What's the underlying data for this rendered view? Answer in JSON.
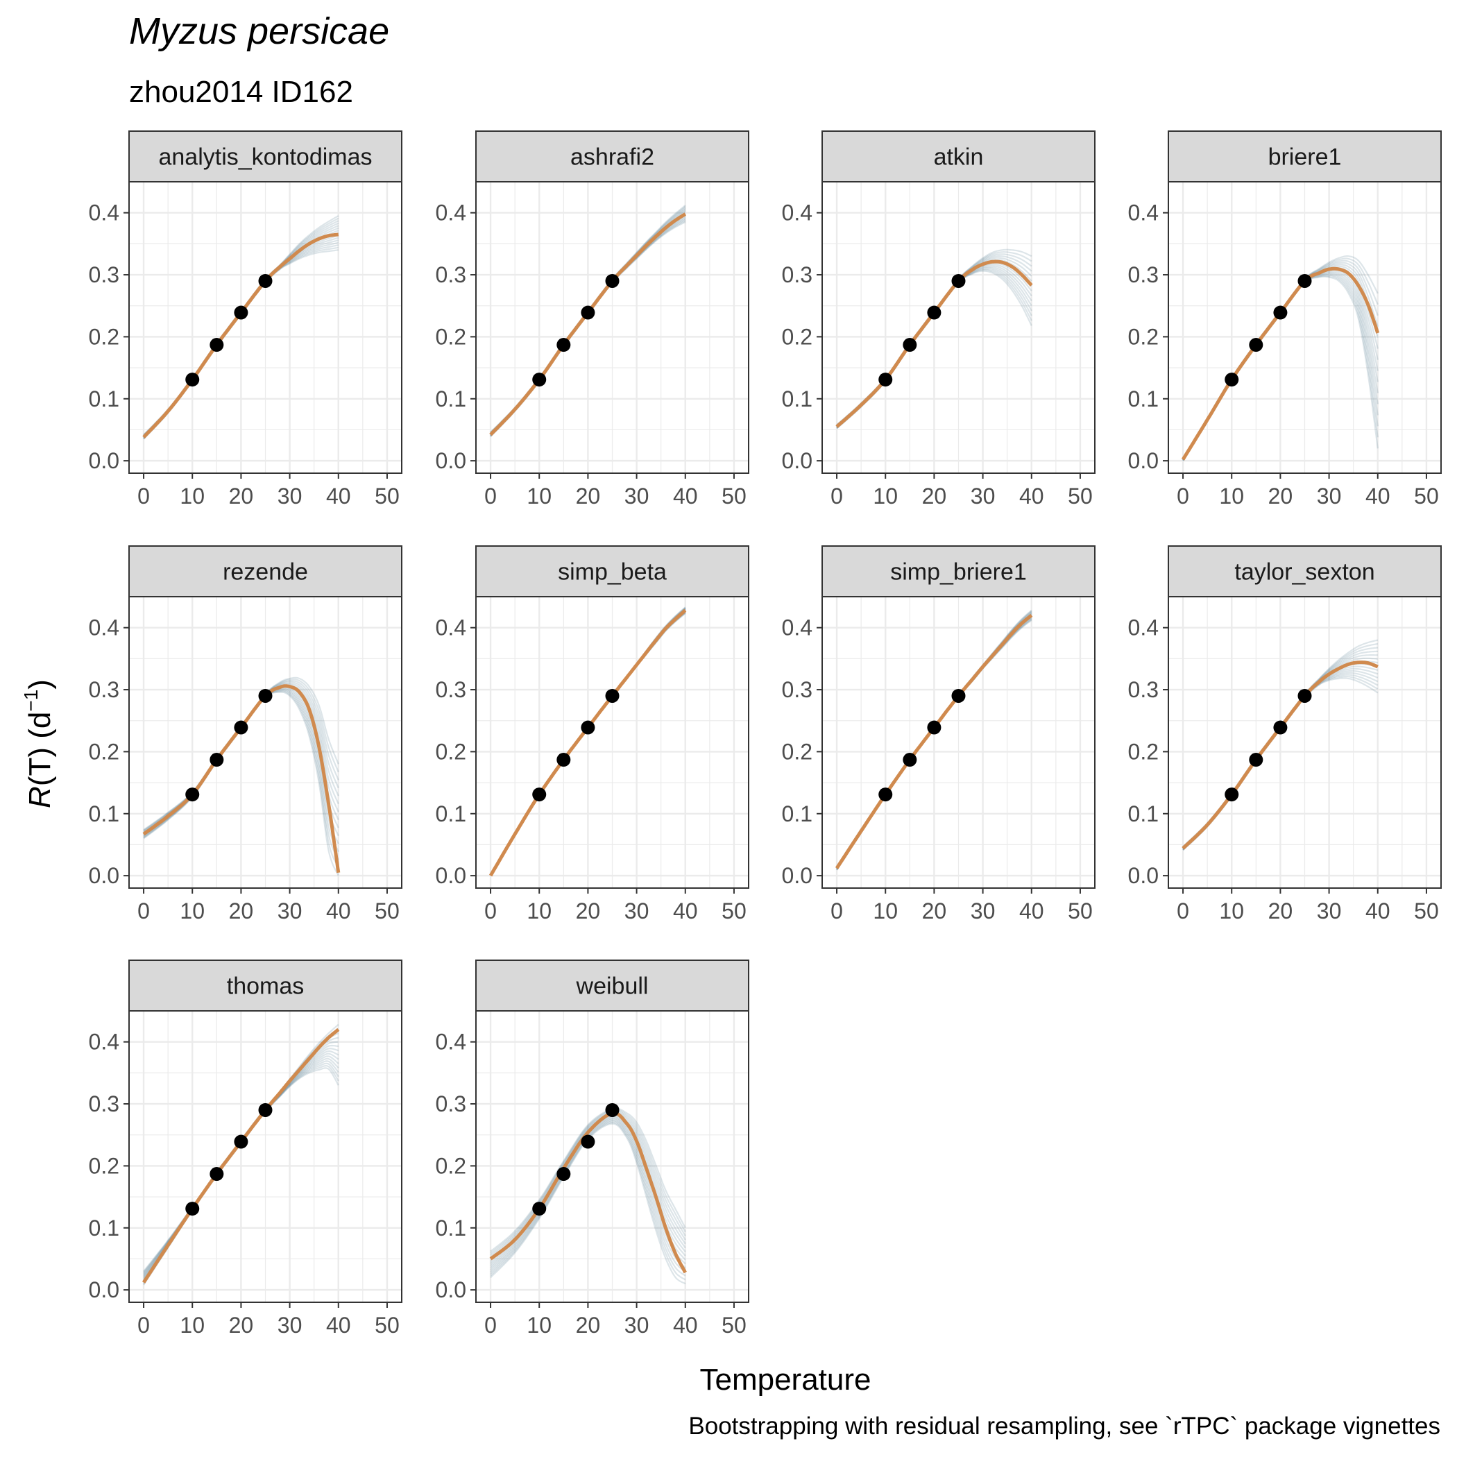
{
  "title": "Myzus persicae",
  "subtitle": "zhou2014 ID162",
  "caption": "Bootstrapping with residual resampling, see `rTPC` package vignettes",
  "colors": {
    "fit": "#d08a4e",
    "boot": "#2e5f78",
    "point": "#000000",
    "strip_bg": "#d9d9d9",
    "grid": "#ebebeb",
    "panel_border": "#333333"
  },
  "chart_data": {
    "type": "line",
    "layout": "facet grid, 4 columns",
    "xlabel": "Temperature",
    "ylabel": {
      "italic": "R",
      "rest": "(T) (d",
      "sup": "−1",
      "close": ")"
    },
    "xlim": [
      -3,
      53
    ],
    "ylim": [
      -0.02,
      0.45
    ],
    "xticks": [
      0,
      10,
      20,
      30,
      40,
      50
    ],
    "yticks": [
      0.0,
      0.1,
      0.2,
      0.3,
      0.4
    ],
    "ytick_labels": [
      "0.0",
      "0.1",
      "0.2",
      "0.3",
      "0.4"
    ],
    "grid": true,
    "observed": {
      "x": [
        10,
        15,
        20,
        25
      ],
      "y": [
        0.131,
        0.187,
        0.239,
        0.29
      ]
    },
    "fit_x": [
      0,
      5,
      10,
      15,
      20,
      25,
      28,
      30,
      32,
      34,
      36,
      38,
      40
    ],
    "panels": [
      {
        "name": "analytis_kontodimas",
        "fit_y": [
          0.038,
          0.08,
          0.131,
          0.187,
          0.239,
          0.29,
          0.313,
          0.326,
          0.339,
          0.35,
          0.358,
          0.363,
          0.365
        ],
        "band_lo": [
          0.035,
          0.077,
          0.128,
          0.184,
          0.236,
          0.287,
          0.309,
          0.318,
          0.326,
          0.332,
          0.336,
          0.338,
          0.34
        ],
        "band_hi": [
          0.042,
          0.083,
          0.134,
          0.19,
          0.242,
          0.293,
          0.316,
          0.333,
          0.35,
          0.364,
          0.376,
          0.386,
          0.395
        ]
      },
      {
        "name": "ashrafi2",
        "fit_y": [
          0.042,
          0.083,
          0.131,
          0.187,
          0.239,
          0.29,
          0.315,
          0.331,
          0.347,
          0.362,
          0.376,
          0.388,
          0.398
        ],
        "band_lo": [
          0.039,
          0.08,
          0.128,
          0.184,
          0.236,
          0.287,
          0.311,
          0.326,
          0.341,
          0.355,
          0.367,
          0.377,
          0.385
        ],
        "band_hi": [
          0.046,
          0.086,
          0.134,
          0.19,
          0.242,
          0.293,
          0.319,
          0.336,
          0.353,
          0.369,
          0.385,
          0.399,
          0.412
        ]
      },
      {
        "name": "atkin",
        "fit_y": [
          0.055,
          0.09,
          0.131,
          0.187,
          0.239,
          0.29,
          0.309,
          0.317,
          0.321,
          0.32,
          0.313,
          0.3,
          0.283
        ],
        "band_lo": [
          0.052,
          0.087,
          0.128,
          0.184,
          0.236,
          0.287,
          0.302,
          0.306,
          0.303,
          0.293,
          0.275,
          0.25,
          0.218
        ],
        "band_hi": [
          0.058,
          0.093,
          0.134,
          0.19,
          0.242,
          0.293,
          0.315,
          0.327,
          0.336,
          0.34,
          0.34,
          0.337,
          0.33
        ]
      },
      {
        "name": "briere1",
        "fit_y": [
          0.002,
          0.066,
          0.131,
          0.187,
          0.239,
          0.29,
          0.303,
          0.309,
          0.309,
          0.302,
          0.283,
          0.252,
          0.206
        ],
        "band_lo": [
          0.0,
          0.063,
          0.128,
          0.184,
          0.236,
          0.287,
          0.296,
          0.296,
          0.29,
          0.27,
          0.23,
          0.14,
          0.02
        ],
        "band_hi": [
          0.004,
          0.069,
          0.134,
          0.19,
          0.242,
          0.293,
          0.31,
          0.32,
          0.327,
          0.33,
          0.323,
          0.3,
          0.27
        ]
      },
      {
        "name": "rezende",
        "fit_y": [
          0.067,
          0.096,
          0.131,
          0.187,
          0.239,
          0.29,
          0.304,
          0.305,
          0.296,
          0.268,
          0.208,
          0.115,
          0.005
        ],
        "band_lo": [
          0.06,
          0.09,
          0.127,
          0.184,
          0.236,
          0.287,
          0.296,
          0.29,
          0.268,
          0.225,
          0.15,
          0.04,
          0.0
        ],
        "band_hi": [
          0.074,
          0.102,
          0.135,
          0.19,
          0.242,
          0.293,
          0.312,
          0.318,
          0.318,
          0.305,
          0.275,
          0.22,
          0.18
        ]
      },
      {
        "name": "simp_beta",
        "fit_y": [
          0.0,
          0.067,
          0.131,
          0.187,
          0.239,
          0.29,
          0.32,
          0.34,
          0.36,
          0.38,
          0.399,
          0.414,
          0.428
        ],
        "band_lo": [
          0.0,
          0.065,
          0.129,
          0.185,
          0.237,
          0.288,
          0.318,
          0.338,
          0.357,
          0.376,
          0.395,
          0.41,
          0.423
        ],
        "band_hi": [
          0.002,
          0.069,
          0.133,
          0.189,
          0.241,
          0.292,
          0.322,
          0.342,
          0.363,
          0.384,
          0.403,
          0.419,
          0.433
        ]
      },
      {
        "name": "simp_briere1",
        "fit_y": [
          0.012,
          0.072,
          0.131,
          0.187,
          0.239,
          0.29,
          0.318,
          0.337,
          0.355,
          0.373,
          0.391,
          0.407,
          0.42
        ],
        "band_lo": [
          0.009,
          0.069,
          0.129,
          0.185,
          0.237,
          0.288,
          0.315,
          0.334,
          0.351,
          0.368,
          0.385,
          0.4,
          0.412
        ],
        "band_hi": [
          0.015,
          0.075,
          0.133,
          0.189,
          0.241,
          0.292,
          0.321,
          0.34,
          0.359,
          0.378,
          0.397,
          0.414,
          0.428
        ]
      },
      {
        "name": "taylor_sexton",
        "fit_y": [
          0.044,
          0.082,
          0.131,
          0.187,
          0.239,
          0.29,
          0.313,
          0.325,
          0.334,
          0.341,
          0.344,
          0.343,
          0.337
        ],
        "band_lo": [
          0.041,
          0.079,
          0.128,
          0.184,
          0.236,
          0.287,
          0.308,
          0.315,
          0.318,
          0.318,
          0.313,
          0.305,
          0.295
        ],
        "band_hi": [
          0.047,
          0.085,
          0.134,
          0.19,
          0.242,
          0.293,
          0.318,
          0.334,
          0.348,
          0.36,
          0.37,
          0.376,
          0.38
        ]
      },
      {
        "name": "thomas",
        "fit_y": [
          0.012,
          0.072,
          0.131,
          0.187,
          0.239,
          0.29,
          0.318,
          0.337,
          0.355,
          0.373,
          0.391,
          0.407,
          0.42
        ],
        "band_lo": [
          0.008,
          0.068,
          0.128,
          0.184,
          0.236,
          0.287,
          0.312,
          0.328,
          0.341,
          0.35,
          0.355,
          0.356,
          0.33
        ],
        "band_hi": [
          0.03,
          0.08,
          0.134,
          0.19,
          0.242,
          0.293,
          0.32,
          0.34,
          0.36,
          0.38,
          0.398,
          0.414,
          0.428
        ]
      },
      {
        "name": "weibull",
        "fit_y": [
          0.05,
          0.081,
          0.131,
          0.196,
          0.254,
          0.285,
          0.268,
          0.24,
          0.196,
          0.149,
          0.099,
          0.058,
          0.028
        ],
        "band_lo": [
          0.02,
          0.06,
          0.115,
          0.182,
          0.243,
          0.268,
          0.245,
          0.205,
          0.15,
          0.095,
          0.05,
          0.02,
          0.01
        ],
        "band_hi": [
          0.062,
          0.095,
          0.145,
          0.208,
          0.266,
          0.292,
          0.285,
          0.27,
          0.24,
          0.2,
          0.16,
          0.13,
          0.1
        ]
      }
    ]
  }
}
